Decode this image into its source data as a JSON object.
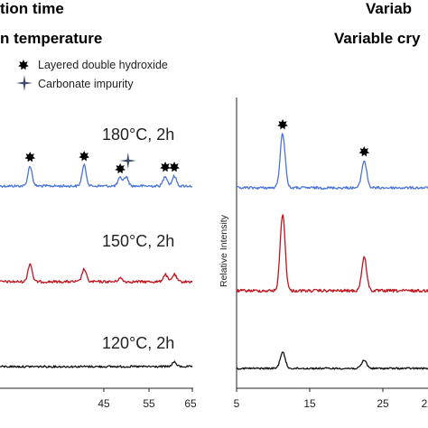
{
  "titles": {
    "left_line1": "tion time",
    "left_line2": "n temperature",
    "right_line1": "Variab",
    "right_line2": "Variable cry"
  },
  "legend": {
    "ldh_label": "Layered double hydroxide",
    "carbonate_label": "Carbonate impurity"
  },
  "colors": {
    "blue": "#4a74d6",
    "red": "#c0141e",
    "black": "#111111",
    "marker": "#000000",
    "carbonate": "#3c4a72"
  },
  "chart_data": [
    {
      "type": "line",
      "panel": "left",
      "x_ticks": [
        "45",
        "55",
        "65"
      ],
      "series": [
        {
          "name": "180°C, 2h",
          "color": "#4a74d6",
          "peaks": [
            {
              "x": 38,
              "h": 22
            },
            {
              "x": 47,
              "h": 23
            },
            {
              "x": 53,
              "h": 9
            },
            {
              "x": 54,
              "h": 10
            },
            {
              "x": 60.5,
              "h": 11
            },
            {
              "x": 62,
              "h": 11
            }
          ]
        },
        {
          "name": "150°C, 2h",
          "color": "#c0141e",
          "peaks": [
            {
              "x": 38,
              "h": 20
            },
            {
              "x": 47,
              "h": 14
            },
            {
              "x": 53,
              "h": 4
            },
            {
              "x": 60.5,
              "h": 8
            },
            {
              "x": 62,
              "h": 8
            }
          ]
        },
        {
          "name": "120°C, 2h",
          "color": "#111111",
          "peaks": [
            {
              "x": 62,
              "h": 5
            }
          ]
        }
      ],
      "annotations": {
        "ldh_marker_x": [
          38,
          47,
          53,
          60.5,
          62
        ],
        "carbonate_marker_x": [
          54.3
        ]
      }
    },
    {
      "type": "line",
      "panel": "right",
      "ylabel": "Relative Intensity",
      "x_ticks": [
        "5",
        "15",
        "25",
        "2"
      ],
      "series": [
        {
          "name": "",
          "color": "#4a74d6",
          "peaks": [
            {
              "x": 11.5,
              "h": 60
            },
            {
              "x": 23,
              "h": 30
            }
          ]
        },
        {
          "name": "",
          "color": "#c0141e",
          "peaks": [
            {
              "x": 11.5,
              "h": 85
            },
            {
              "x": 23,
              "h": 37
            }
          ]
        },
        {
          "name": "",
          "color": "#111111",
          "peaks": [
            {
              "x": 11.5,
              "h": 18
            },
            {
              "x": 23,
              "h": 9
            }
          ]
        }
      ],
      "annotations": {
        "ldh_marker_x": [
          11.5,
          23
        ]
      }
    }
  ]
}
